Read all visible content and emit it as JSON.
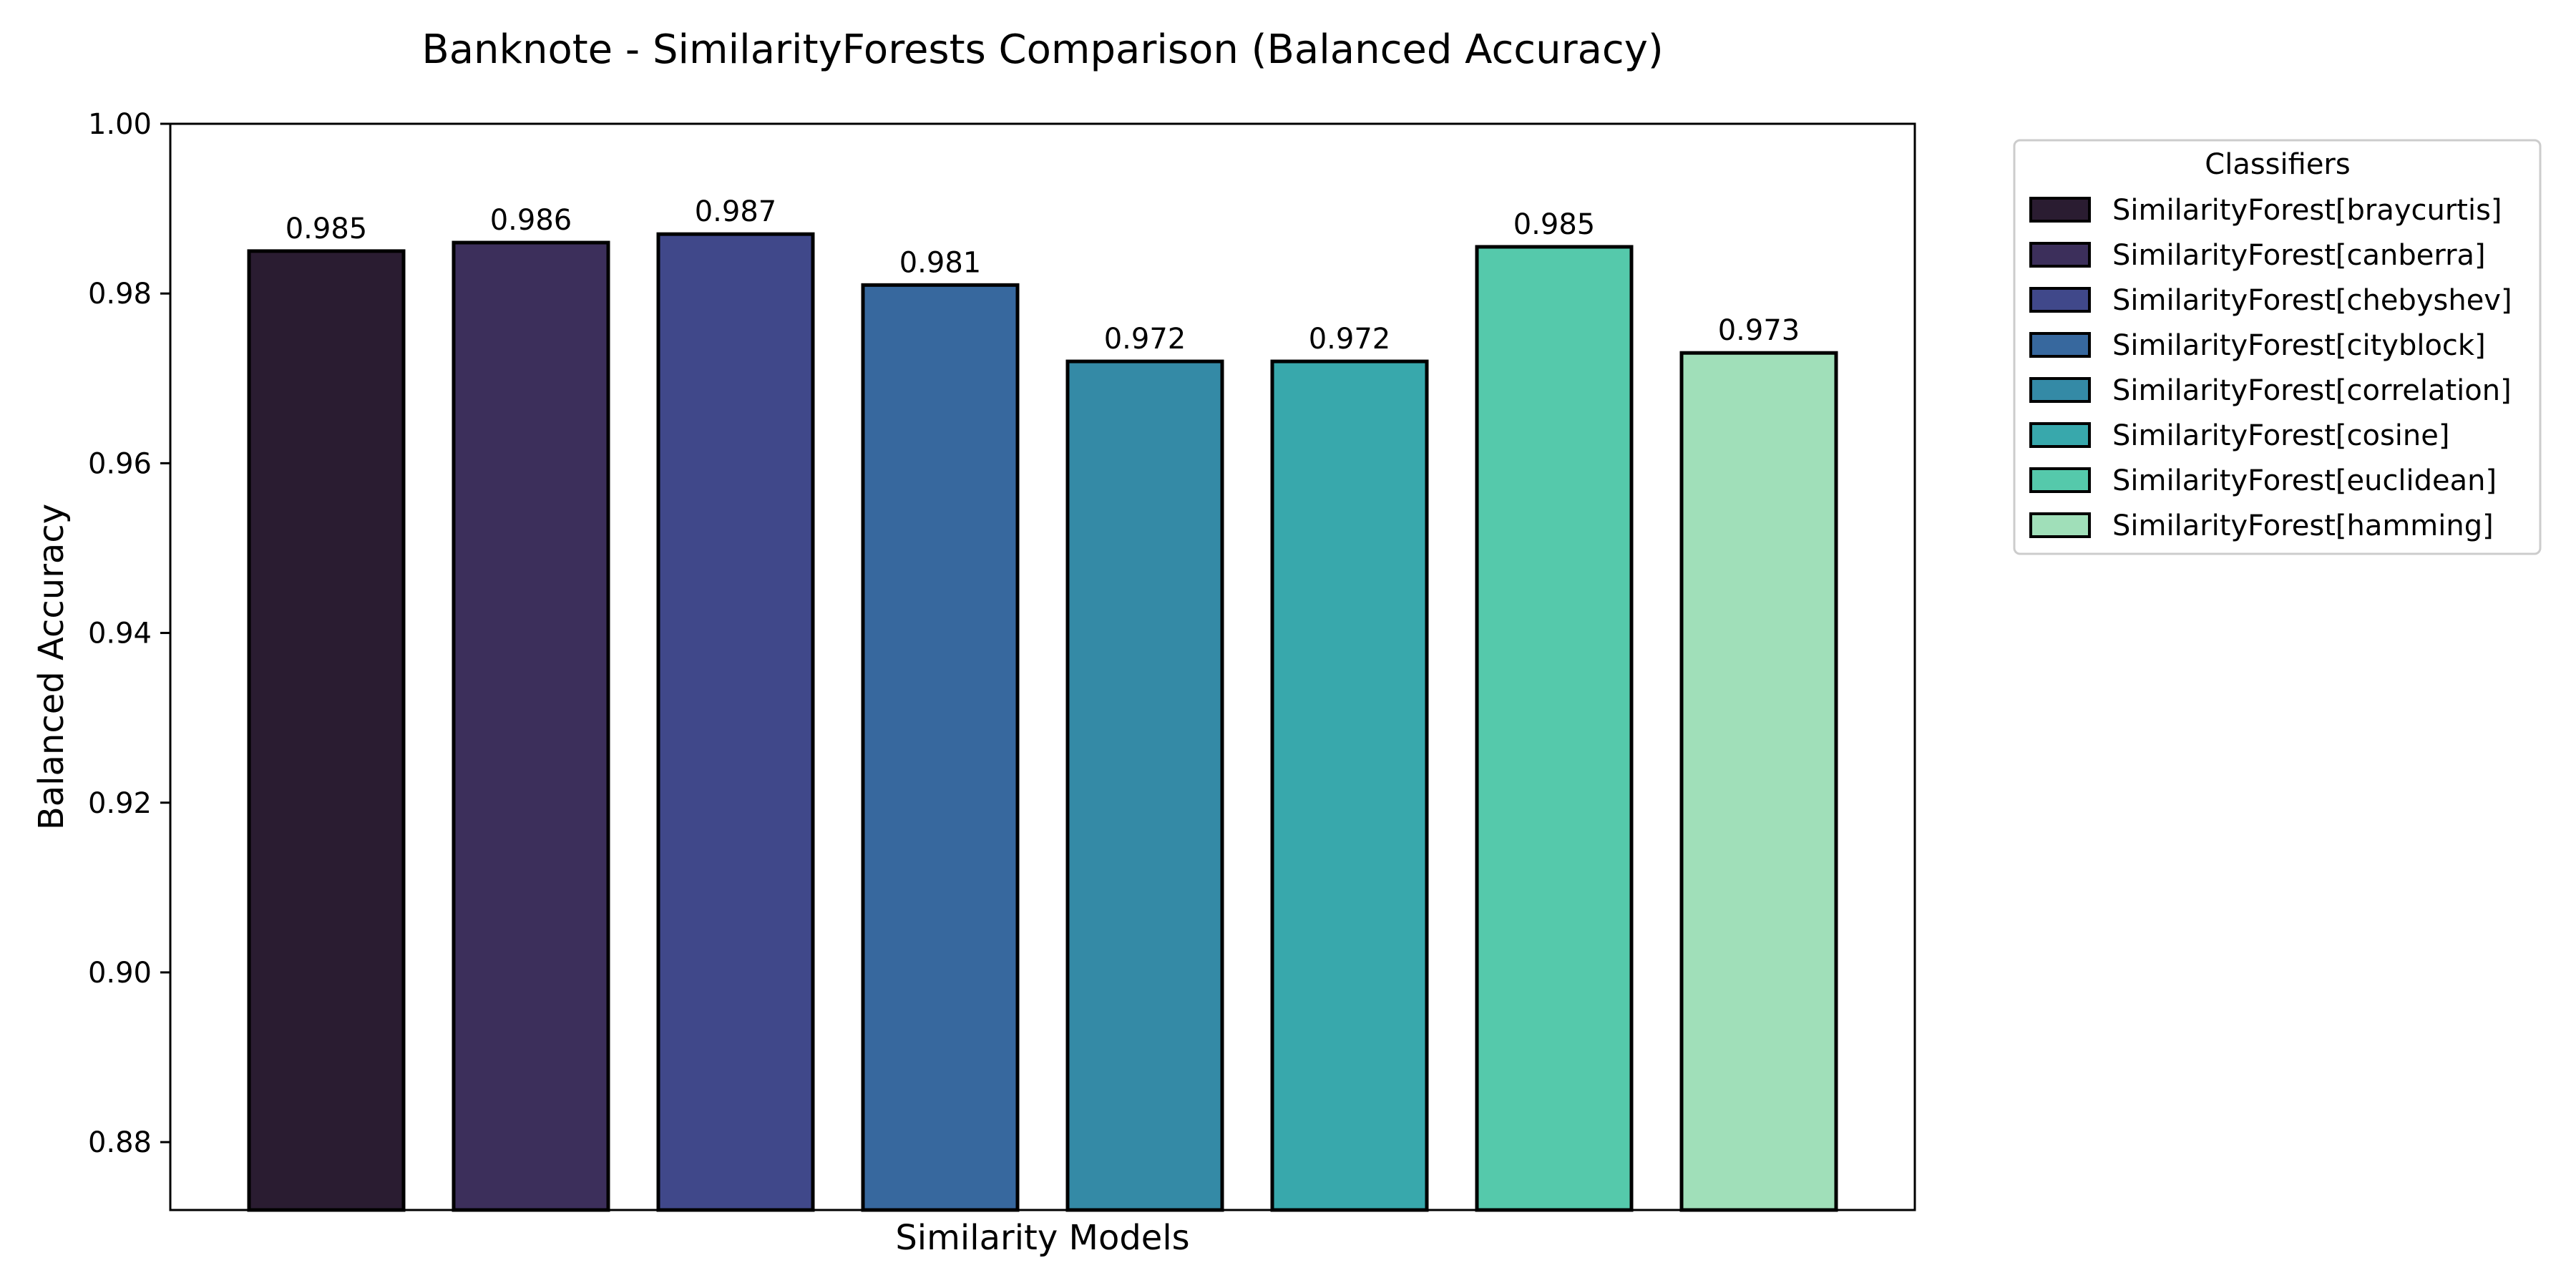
{
  "chart_data": {
    "type": "bar",
    "title": "Banknote - SimilarityForests Comparison (Balanced Accuracy)",
    "xlabel": "Similarity Models",
    "ylabel": "Balanced Accuracy",
    "ylim": [
      0.872,
      1.0
    ],
    "yticks": [
      0.88,
      0.9,
      0.92,
      0.94,
      0.96,
      0.98,
      1.0
    ],
    "ytick_labels": [
      "0.88",
      "0.90",
      "0.92",
      "0.94",
      "0.96",
      "0.98",
      "1.00"
    ],
    "grid": false,
    "legend": {
      "title": "Classifiers",
      "placement": "outside-right-top"
    },
    "series": [
      {
        "name": "SimilarityForest[braycurtis]",
        "value": 0.985,
        "label": "0.985",
        "color": "#2a1c31"
      },
      {
        "name": "SimilarityForest[canberra]",
        "value": 0.986,
        "label": "0.986",
        "color": "#3c2f5b"
      },
      {
        "name": "SimilarityForest[chebyshev]",
        "value": 0.987,
        "label": "0.987",
        "color": "#40488a"
      },
      {
        "name": "SimilarityForest[cityblock]",
        "value": 0.981,
        "label": "0.981",
        "color": "#37689e"
      },
      {
        "name": "SimilarityForest[correlation]",
        "value": 0.972,
        "label": "0.972",
        "color": "#348aa6"
      },
      {
        "name": "SimilarityForest[cosine]",
        "value": 0.972,
        "label": "0.972",
        "color": "#38a8ac"
      },
      {
        "name": "SimilarityForest[euclidean]",
        "value": 0.9855,
        "label": "0.985",
        "color": "#55c9ab"
      },
      {
        "name": "SimilarityForest[hamming]",
        "value": 0.973,
        "label": "0.973",
        "color": "#a0dfb9"
      }
    ]
  }
}
